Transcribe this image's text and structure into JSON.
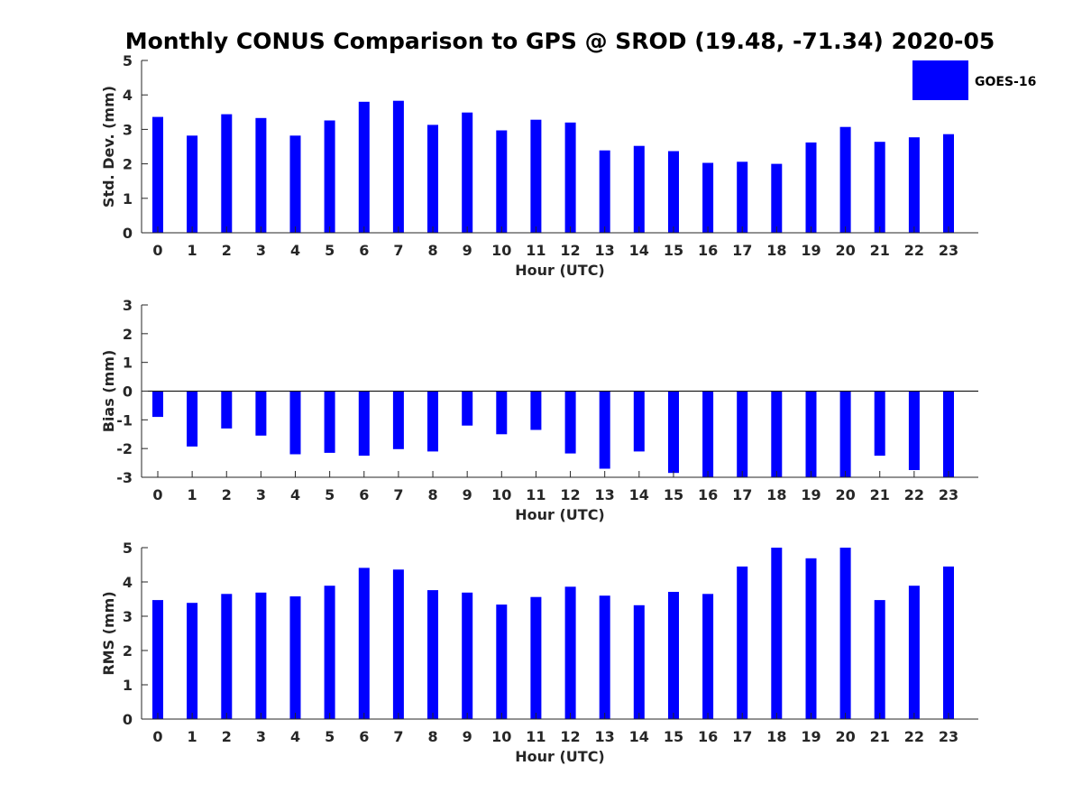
{
  "title": "Monthly CONUS Comparison to GPS @ SROD (19.48, -71.34) 2020-05",
  "legend": {
    "label": "GOES-16",
    "color": "#0000ff",
    "placement": "top-right"
  },
  "chart_data": [
    {
      "type": "bar",
      "name": "std-dev",
      "xlabel": "Hour (UTC)",
      "ylabel": "Std. Dev. (mm)",
      "categories": [
        "0",
        "1",
        "2",
        "3",
        "4",
        "5",
        "6",
        "7",
        "8",
        "9",
        "10",
        "11",
        "12",
        "13",
        "14",
        "15",
        "16",
        "17",
        "18",
        "19",
        "20",
        "21",
        "22",
        "23"
      ],
      "series": [
        {
          "name": "GOES-16",
          "values": [
            3.36,
            2.82,
            3.44,
            3.33,
            2.82,
            3.26,
            3.8,
            3.83,
            3.13,
            3.49,
            2.97,
            3.28,
            3.2,
            2.39,
            2.52,
            2.37,
            2.03,
            2.06,
            2.0,
            2.62,
            3.07,
            2.64,
            2.77,
            2.86
          ]
        }
      ],
      "ylim": [
        0,
        5
      ],
      "yticks": [
        "0",
        "1",
        "2",
        "3",
        "4",
        "5"
      ],
      "zero_line": false
    },
    {
      "type": "bar",
      "name": "bias",
      "xlabel": "Hour (UTC)",
      "ylabel": "Bias (mm)",
      "categories": [
        "0",
        "1",
        "2",
        "3",
        "4",
        "5",
        "6",
        "7",
        "8",
        "9",
        "10",
        "11",
        "12",
        "13",
        "14",
        "15",
        "16",
        "17",
        "18",
        "19",
        "20",
        "21",
        "22",
        "23"
      ],
      "series": [
        {
          "name": "GOES-16",
          "values": [
            -0.9,
            -1.93,
            -1.3,
            -1.55,
            -2.2,
            -2.15,
            -2.25,
            -2.02,
            -2.1,
            -1.2,
            -1.5,
            -1.35,
            -2.17,
            -2.7,
            -2.1,
            -2.85,
            -3.0,
            -3.0,
            -3.0,
            -3.0,
            -3.0,
            -2.25,
            -2.75,
            -3.0
          ]
        }
      ],
      "ylim": [
        -3,
        3
      ],
      "yticks": [
        "-3",
        "-2",
        "-1",
        "0",
        "1",
        "2",
        "3"
      ],
      "zero_line": true
    },
    {
      "type": "bar",
      "name": "rms",
      "xlabel": "Hour (UTC)",
      "ylabel": "RMS (mm)",
      "categories": [
        "0",
        "1",
        "2",
        "3",
        "4",
        "5",
        "6",
        "7",
        "8",
        "9",
        "10",
        "11",
        "12",
        "13",
        "14",
        "15",
        "16",
        "17",
        "18",
        "19",
        "20",
        "21",
        "22",
        "23"
      ],
      "series": [
        {
          "name": "GOES-16",
          "values": [
            3.47,
            3.39,
            3.65,
            3.69,
            3.58,
            3.89,
            4.41,
            4.36,
            3.76,
            3.69,
            3.34,
            3.56,
            3.86,
            3.6,
            3.32,
            3.71,
            3.65,
            4.45,
            5.0,
            4.69,
            5.0,
            3.47,
            3.89,
            4.45
          ]
        }
      ],
      "ylim": [
        0,
        5
      ],
      "yticks": [
        "0",
        "1",
        "2",
        "3",
        "4",
        "5"
      ],
      "zero_line": false
    }
  ]
}
